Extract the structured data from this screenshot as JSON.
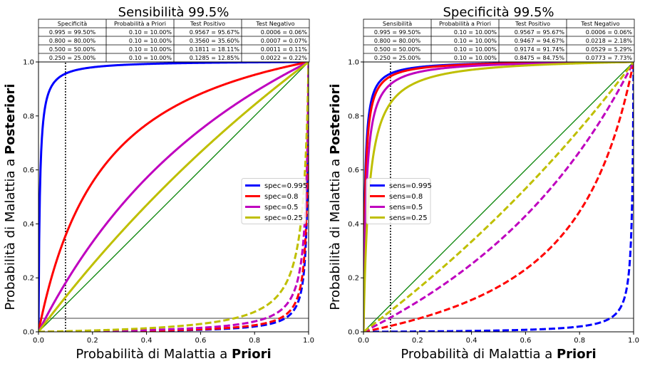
{
  "chart_data": [
    {
      "type": "line",
      "title": "Sensibilità 99.5%",
      "xlabel": {
        "normal": "Probabilità di Malattia a ",
        "bold": "Priori"
      },
      "ylabel": {
        "normal": "Probabilità di Malattia a ",
        "bold": "Posteriori"
      },
      "xlim": [
        0,
        1
      ],
      "ylim": [
        0,
        1
      ],
      "xticks": [
        "0.0",
        "0.2",
        "0.4",
        "0.6",
        "0.8",
        "1.0"
      ],
      "yticks": [
        "0.0",
        "0.2",
        "0.4",
        "0.6",
        "0.8",
        "1.0"
      ],
      "vary": "spec",
      "fixed_value": 0.995,
      "prior_marker": 0.1,
      "baseline": 0.05,
      "legend_position": "center-right",
      "series": [
        {
          "name": "spec=0.995",
          "param": 0.995,
          "color": "#0000ff"
        },
        {
          "name": "spec=0.8",
          "param": 0.8,
          "color": "#ff0000"
        },
        {
          "name": "spec=0.5",
          "param": 0.5,
          "color": "#bf00bf"
        },
        {
          "name": "spec=0.25",
          "param": 0.25,
          "color": "#bfbf00"
        }
      ],
      "table": {
        "headers": [
          "Specificità",
          "Probabilità a Priori",
          "Test Positivo",
          "Test Negativo"
        ],
        "rows": [
          [
            "0.995 = 99.50%",
            "0.10 = 10.00%",
            "0.9567 = 95.67%",
            "0.0006 = 0.06%"
          ],
          [
            "0.800 = 80.00%",
            "0.10 = 10.00%",
            "0.3560 = 35.60%",
            "0.0007 = 0.07%"
          ],
          [
            "0.500 = 50.00%",
            "0.10 = 10.00%",
            "0.1811 = 18.11%",
            "0.0011 = 0.11%"
          ],
          [
            "0.250 = 25.00%",
            "0.10 = 10.00%",
            "0.1285 = 12.85%",
            "0.0022 = 0.22%"
          ]
        ]
      }
    },
    {
      "type": "line",
      "title": "Specificità 99.5%",
      "xlabel": {
        "normal": "Probabilità di Malattia a ",
        "bold": "Priori"
      },
      "ylabel": {
        "normal": "Probabilità di Malattia a ",
        "bold": "Posteriori"
      },
      "xlim": [
        0,
        1
      ],
      "ylim": [
        0,
        1
      ],
      "xticks": [
        "0.0",
        "0.2",
        "0.4",
        "0.6",
        "0.8",
        "1.0"
      ],
      "yticks": [
        "0.0",
        "0.2",
        "0.4",
        "0.6",
        "0.8",
        "1.0"
      ],
      "vary": "sens",
      "fixed_value": 0.995,
      "prior_marker": 0.1,
      "baseline": 0.05,
      "legend_position": "center-left",
      "series": [
        {
          "name": "sens=0.995",
          "param": 0.995,
          "color": "#0000ff"
        },
        {
          "name": "sens=0.8",
          "param": 0.8,
          "color": "#ff0000"
        },
        {
          "name": "sens=0.5",
          "param": 0.5,
          "color": "#bf00bf"
        },
        {
          "name": "sens=0.25",
          "param": 0.25,
          "color": "#bfbf00"
        }
      ],
      "table": {
        "headers": [
          "Sensibilità",
          "Probabilità a Priori",
          "Test Positivo",
          "Test Negativo"
        ],
        "rows": [
          [
            "0.995 = 99.50%",
            "0.10 = 10.00%",
            "0.9567 = 95.67%",
            "0.0006 = 0.06%"
          ],
          [
            "0.800 = 80.00%",
            "0.10 = 10.00%",
            "0.9467 = 94.67%",
            "0.0218 = 2.18%"
          ],
          [
            "0.500 = 50.00%",
            "0.10 = 10.00%",
            "0.9174 = 91.74%",
            "0.0529 = 5.29%"
          ],
          [
            "0.250 = 25.00%",
            "0.10 = 10.00%",
            "0.8475 = 84.75%",
            "0.0773 = 7.73%"
          ]
        ]
      }
    }
  ]
}
